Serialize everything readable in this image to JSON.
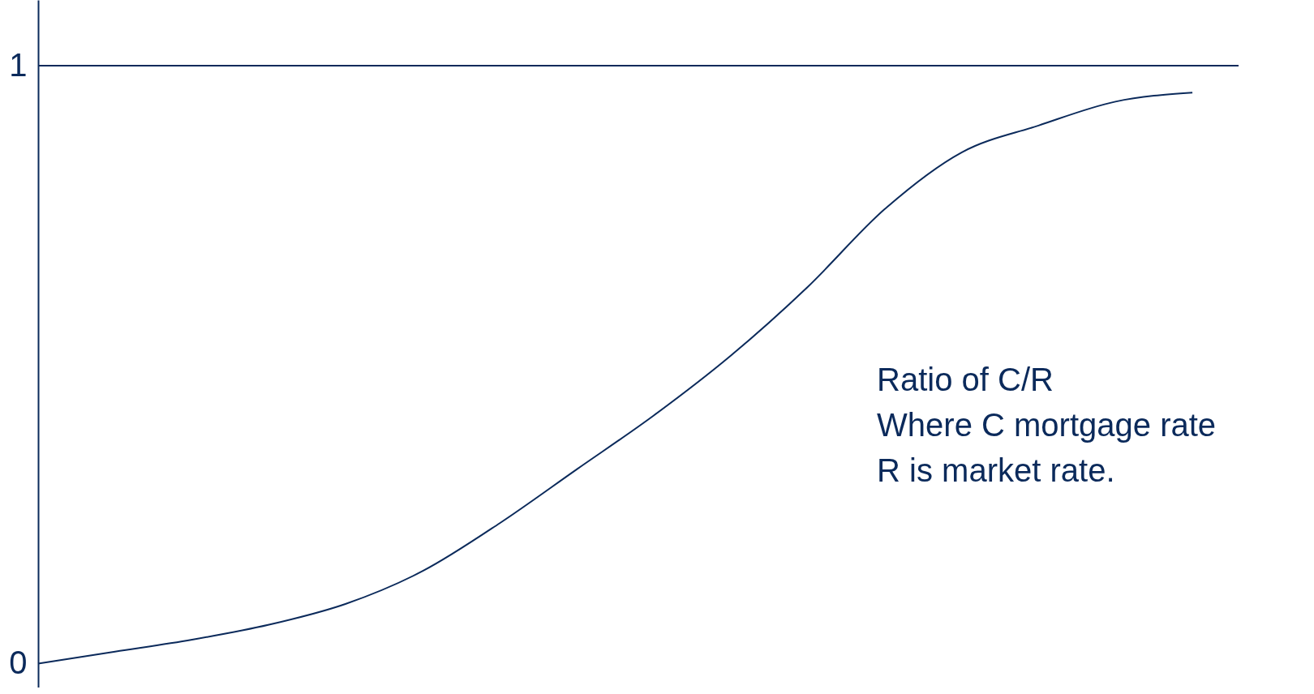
{
  "chart_data": {
    "type": "line",
    "categories": [
      null,
      null,
      null,
      null,
      null,
      null,
      null,
      null,
      null,
      null,
      null,
      null,
      null,
      null,
      null,
      null
    ],
    "series": [
      {
        "color": "#0b2a5b",
        "values": [
          0,
          0.02,
          0.04,
          0.065,
          0.1,
          0.155,
          0.235,
          0.325,
          0.415,
          0.515,
          0.63,
          0.76,
          0.855,
          0.9,
          0.94,
          0.955
        ]
      }
    ],
    "ylim": [
      -0.04,
      1.11
    ],
    "yticks": [
      0,
      1
    ],
    "grid": false,
    "tick_labels": "y",
    "marker": "none",
    "line_style": "solid",
    "ref_lines": [
      {
        "axis": "y",
        "value": 1,
        "color": "#0b2a5b"
      }
    ],
    "annotations": [
      "Ratio of C/R\nWhere C mortgage rate\nR is market rate."
    ]
  }
}
